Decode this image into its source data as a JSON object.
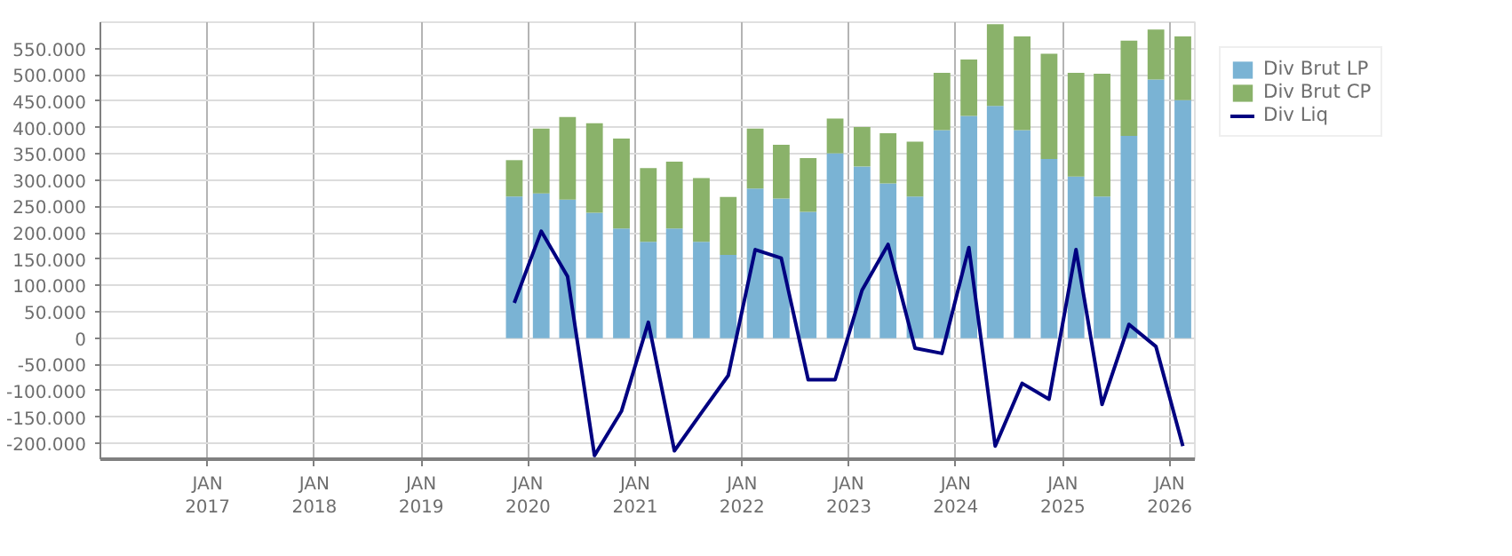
{
  "chart_data": {
    "type": "bar",
    "stacked": true,
    "x": [
      "2019-11-15",
      "2020-02-15",
      "2020-05-15",
      "2020-08-15",
      "2020-11-15",
      "2021-02-15",
      "2021-05-15",
      "2021-08-15",
      "2021-11-15",
      "2022-02-15",
      "2022-05-15",
      "2022-08-15",
      "2022-11-15",
      "2023-02-15",
      "2023-05-15",
      "2023-08-15",
      "2023-11-15",
      "2024-02-15",
      "2024-05-15",
      "2024-08-15",
      "2024-11-15",
      "2025-02-15",
      "2025-05-15",
      "2025-08-15",
      "2025-11-15",
      "2026-02-15"
    ],
    "series": [
      {
        "name": "Div Brut LP",
        "color": "#7ab3d4",
        "values": [
          269000,
          275000,
          263000,
          238000,
          208000,
          183000,
          208000,
          183000,
          158000,
          284000,
          265000,
          240000,
          351000,
          326000,
          294000,
          269000,
          395000,
          422000,
          441000,
          395000,
          340000,
          307000,
          269000,
          384000,
          491000,
          452000
        ]
      },
      {
        "name": "Div Brut CP",
        "color": "#8ab26a",
        "values": [
          69000,
          123000,
          157000,
          170000,
          171000,
          140000,
          127000,
          121000,
          110000,
          114000,
          102000,
          102000,
          66000,
          75000,
          95000,
          104000,
          109000,
          107000,
          155000,
          178000,
          200000,
          197000,
          233000,
          181000,
          95000,
          121000
        ]
      },
      {
        "name": "Div Liq",
        "type": "line",
        "color": "#000080",
        "values": [
          67000,
          203000,
          117000,
          -223000,
          -139000,
          30000,
          -214000,
          -142000,
          -71000,
          168000,
          152000,
          -79000,
          -79000,
          91000,
          178000,
          -19000,
          -29000,
          172000,
          -205000,
          -86000,
          -116000,
          168000,
          -126000,
          26000,
          -16000,
          -205000
        ]
      }
    ],
    "xlim": [
      "2016-01-01",
      "2026-03-28"
    ],
    "xticks": [
      {
        "value": "2017-01-01",
        "label": "JAN\n2017"
      },
      {
        "value": "2018-01-01",
        "label": "JAN\n2018"
      },
      {
        "value": "2019-01-01",
        "label": "JAN\n2019"
      },
      {
        "value": "2020-01-01",
        "label": "JAN\n2020"
      },
      {
        "value": "2021-01-01",
        "label": "JAN\n2021"
      },
      {
        "value": "2022-01-01",
        "label": "JAN\n2022"
      },
      {
        "value": "2023-01-01",
        "label": "JAN\n2023"
      },
      {
        "value": "2024-01-01",
        "label": "JAN\n2024"
      },
      {
        "value": "2025-01-01",
        "label": "JAN\n2025"
      },
      {
        "value": "2026-01-01",
        "label": "JAN\n2026"
      }
    ],
    "ylim": [
      -230000,
      600000
    ],
    "yticks": [
      {
        "value": -200000,
        "label": "-200.000"
      },
      {
        "value": -150000,
        "label": "-150.000"
      },
      {
        "value": -100000,
        "label": "-100.000"
      },
      {
        "value": -50000,
        "label": "-50.000"
      },
      0,
      {
        "value": 50000,
        "label": "50.000"
      },
      {
        "value": 100000,
        "label": "100.000"
      },
      {
        "value": 150000,
        "label": "150.000"
      },
      {
        "value": 200000,
        "label": "200.000"
      },
      {
        "value": 250000,
        "label": "250.000"
      },
      {
        "value": 300000,
        "label": "300.000"
      },
      {
        "value": 350000,
        "label": "350.000"
      },
      {
        "value": 400000,
        "label": "400.000"
      },
      {
        "value": 450000,
        "label": "450.000"
      },
      {
        "value": 500000,
        "label": "500.000"
      },
      {
        "value": 550000,
        "label": "550.000"
      }
    ],
    "grid": true,
    "legend": "top right",
    "marker": "none",
    "line_style": "solid"
  }
}
